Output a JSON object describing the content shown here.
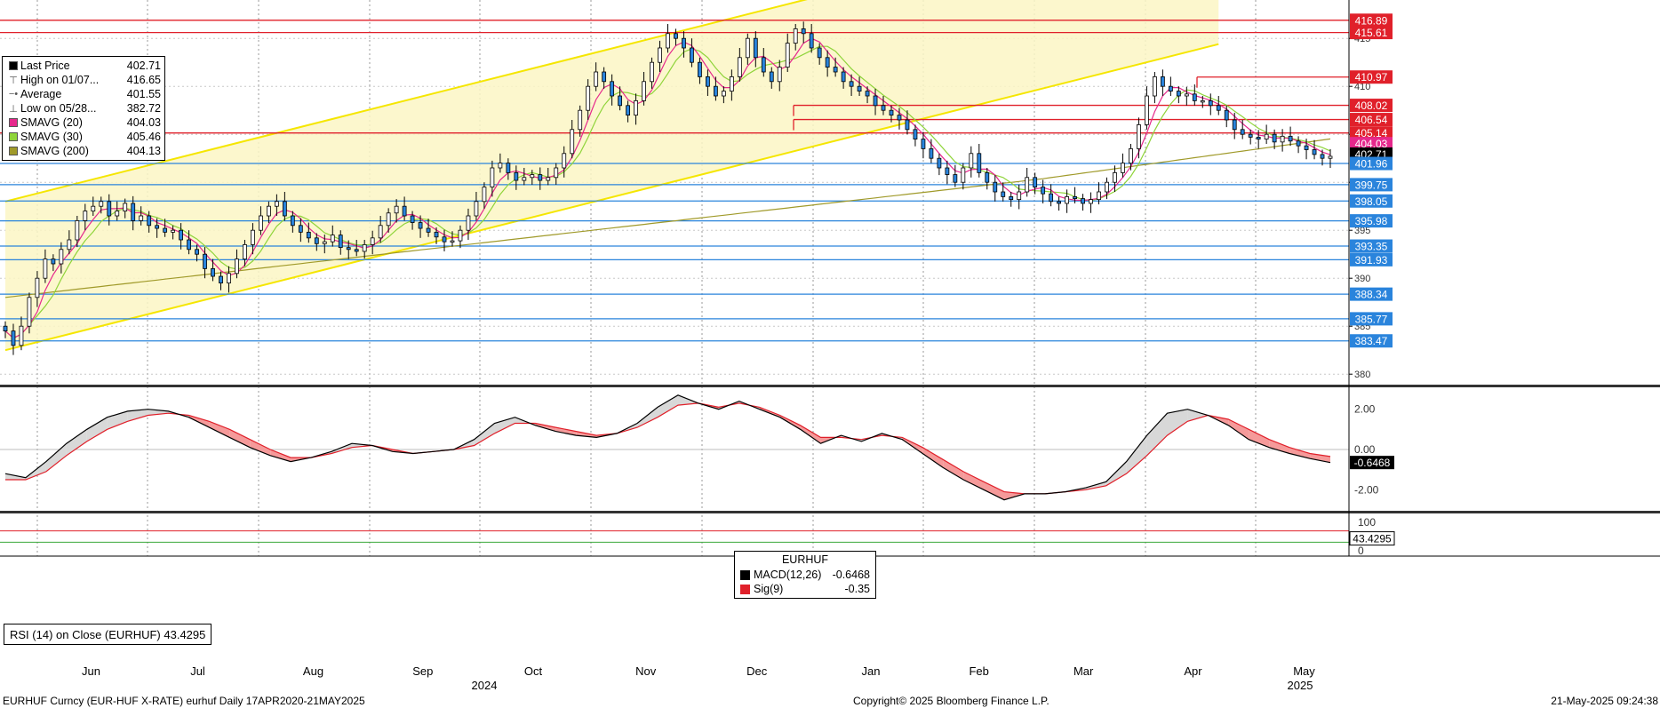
{
  "chart_data": {
    "type": "candlestick",
    "instrument": "EURHUF",
    "x_months": [
      "Jun",
      "Jul",
      "Aug",
      "Sep",
      "Oct",
      "Nov",
      "Dec",
      "Jan",
      "Feb",
      "Mar",
      "Apr",
      "May"
    ],
    "x_years": [
      "2024",
      "2025"
    ],
    "price_axis": {
      "ylim": [
        379,
        419
      ],
      "ticks": [
        "380",
        "385",
        "390",
        "395",
        "400",
        "405",
        "410",
        "415"
      ]
    },
    "price_series_close": [
      384.5,
      383,
      385,
      388,
      390,
      392,
      391.5,
      393,
      394,
      396,
      397,
      397.5,
      398,
      396.5,
      397,
      397.8,
      396,
      396.5,
      395.5,
      395.2,
      394.8,
      395,
      394,
      393,
      392.5,
      391,
      390.2,
      389.5,
      390.5,
      392,
      393.5,
      395,
      396.5,
      397.5,
      398,
      396.5,
      395.5,
      394.8,
      394.2,
      393.6,
      393.8,
      394.5,
      393.2,
      393,
      392.8,
      393.5,
      394.2,
      395.5,
      396.8,
      397.5,
      396.5,
      395.8,
      395.2,
      394.8,
      394.3,
      393.8,
      393.9,
      395,
      396.5,
      398,
      399.5,
      401.5,
      402,
      401,
      400.2,
      400.5,
      400.8,
      400.2,
      400.5,
      401.5,
      403,
      405.5,
      407.5,
      410,
      411.5,
      410.5,
      409,
      408,
      407,
      408.5,
      410.5,
      412.5,
      414,
      415.5,
      415,
      414,
      412.5,
      411,
      410,
      409,
      409.5,
      411,
      413,
      415,
      413,
      411.5,
      410.5,
      412,
      414.5,
      416,
      415.5,
      414,
      413,
      412,
      411.5,
      410.5,
      410,
      409.5,
      409,
      408,
      407.5,
      407,
      406.5,
      405.5,
      404.5,
      403.5,
      402.5,
      401.5,
      400.8,
      400,
      401.5,
      403,
      401,
      400,
      399,
      398.5,
      398.2,
      399,
      400.5,
      399.5,
      398.8,
      398,
      397.8,
      398.5,
      398.3,
      397.8,
      398.2,
      399,
      400,
      401,
      402,
      403.5,
      406,
      409,
      411,
      410,
      409.5,
      409,
      409.2,
      408.5,
      408.5,
      408,
      407.5,
      406.5,
      405.5,
      405,
      404.7,
      404.5,
      405,
      404.2,
      404.8,
      404.3,
      403.8,
      403.4,
      402.9,
      402.5,
      402.71
    ],
    "last_price": 402.71,
    "high_label": "High on 01/07...",
    "high_value": 416.65,
    "low_label": "Low on 05/28...",
    "low_value": 382.72,
    "average": 401.55,
    "sma20": 404.03,
    "sma30": 405.46,
    "sma200": 404.13,
    "horizontal_levels_red": [
      416.89,
      415.61,
      410.97,
      408.02,
      406.54,
      405.14
    ],
    "horizontal_levels_blue": [
      401.96,
      399.75,
      398.05,
      395.98,
      393.35,
      391.93,
      388.34,
      385.77,
      383.47
    ],
    "price_badges": [
      {
        "label": "416.89",
        "value": 416.89,
        "color": "#e0202a"
      },
      {
        "label": "415.61",
        "value": 415.61,
        "color": "#e0202a"
      },
      {
        "label": "410.97",
        "value": 410.97,
        "color": "#e0202a"
      },
      {
        "label": "408.02",
        "value": 408.02,
        "color": "#e0202a"
      },
      {
        "label": "406.54",
        "value": 406.54,
        "color": "#e0202a"
      },
      {
        "label": "405.14",
        "value": 405.14,
        "color": "#e0202a"
      },
      {
        "label": "404.03",
        "value": 404.03,
        "color": "#e6288c"
      },
      {
        "label": "402.71",
        "value": 402.71,
        "color": "#000000"
      },
      {
        "label": "401.96",
        "value": 401.96,
        "color": "#2a84dc"
      },
      {
        "label": "399.75",
        "value": 399.75,
        "color": "#2a84dc"
      },
      {
        "label": "398.05",
        "value": 398.05,
        "color": "#2a84dc"
      },
      {
        "label": "395.98",
        "value": 395.98,
        "color": "#2a84dc"
      },
      {
        "label": "393.35",
        "value": 393.35,
        "color": "#2a84dc"
      },
      {
        "label": "391.93",
        "value": 391.93,
        "color": "#2a84dc"
      },
      {
        "label": "388.34",
        "value": 388.34,
        "color": "#2a84dc"
      },
      {
        "label": "385.77",
        "value": 385.77,
        "color": "#2a84dc"
      },
      {
        "label": "383.47",
        "value": 383.47,
        "color": "#2a84dc"
      }
    ],
    "trend_channel": {
      "color": "#f5e600",
      "lower_start": [
        0,
        382.5
      ],
      "lower_end": [
        152,
        414.4
      ],
      "upper_start": [
        0,
        398
      ],
      "upper_end": [
        152,
        429.9
      ]
    },
    "macd": {
      "ylim": [
        -3.0,
        3.0
      ],
      "ticks": [
        "2.00",
        "0.00",
        "-2.00"
      ],
      "macd_values": [
        -1.2,
        -1.4,
        -0.6,
        0.3,
        1.0,
        1.6,
        1.9,
        2.0,
        1.9,
        1.6,
        1.1,
        0.6,
        0.1,
        -0.3,
        -0.6,
        -0.4,
        -0.1,
        0.3,
        0.2,
        -0.1,
        -0.2,
        -0.1,
        0.0,
        0.5,
        1.3,
        1.6,
        1.2,
        0.9,
        0.7,
        0.6,
        0.8,
        1.3,
        2.1,
        2.7,
        2.3,
        2.0,
        2.4,
        2.0,
        1.6,
        1.0,
        0.3,
        0.7,
        0.4,
        0.8,
        0.5,
        -0.2,
        -0.9,
        -1.5,
        -2.0,
        -2.5,
        -2.2,
        -2.2,
        -2.1,
        -1.9,
        -1.6,
        -0.6,
        0.7,
        1.8,
        2.0,
        1.7,
        1.2,
        0.5,
        0.1,
        -0.2,
        -0.45,
        -0.6468
      ],
      "signal_values": [
        -1.5,
        -1.5,
        -1.1,
        -0.3,
        0.4,
        1.0,
        1.4,
        1.7,
        1.8,
        1.7,
        1.4,
        1.0,
        0.5,
        0.0,
        -0.4,
        -0.4,
        -0.2,
        0.1,
        0.2,
        0.0,
        -0.2,
        -0.1,
        0.0,
        0.2,
        0.8,
        1.3,
        1.3,
        1.1,
        0.9,
        0.7,
        0.8,
        1.1,
        1.6,
        2.2,
        2.3,
        2.1,
        2.3,
        2.1,
        1.7,
        1.2,
        0.6,
        0.6,
        0.5,
        0.7,
        0.6,
        0.1,
        -0.5,
        -1.1,
        -1.6,
        -2.1,
        -2.2,
        -2.2,
        -2.1,
        -2.0,
        -1.8,
        -1.2,
        -0.3,
        0.7,
        1.4,
        1.7,
        1.5,
        1.0,
        0.5,
        0.1,
        -0.2,
        -0.35
      ],
      "legend_title": "EURHUF",
      "series": [
        {
          "name": "MACD(12,26)",
          "value": "-0.6468",
          "color": "#000000"
        },
        {
          "name": "Sig(9)",
          "value": "-0.35",
          "color": "#e0202a"
        }
      ],
      "last_badge": "-0.6468"
    },
    "rsi": {
      "ylim": [
        0,
        100
      ],
      "ticks": [
        "100",
        "0"
      ],
      "levels": [
        70,
        30
      ],
      "label": "RSI (14)  on Close (EURHUF) 43.4295",
      "last_badge": "43.4295"
    }
  },
  "legend_price": [
    {
      "symbol": "square",
      "label": "Last Price",
      "value": "402.71",
      "color": "#000000"
    },
    {
      "symbol": "high",
      "label": "High on 01/07...",
      "value": "416.65",
      "color": "#555555"
    },
    {
      "symbol": "avg",
      "label": "Average",
      "value": "401.55",
      "color": "#555555"
    },
    {
      "symbol": "low",
      "label": "Low on 05/28...",
      "value": "382.72",
      "color": "#555555"
    },
    {
      "symbol": "swatch",
      "label": "SMAVG (20)",
      "value": "404.03",
      "color": "#e6288c"
    },
    {
      "symbol": "swatch",
      "label": "SMAVG (30)",
      "value": "405.46",
      "color": "#8fd43a"
    },
    {
      "symbol": "swatch",
      "label": "SMAVG (200)",
      "value": "404.13",
      "color": "#a09a2a"
    }
  ],
  "footer": {
    "left": "EURHUF Curncy (EUR-HUF X-RATE) eurhuf  Daily 17APR2020-21MAY2025",
    "center": "Copyright© 2025 Bloomberg Finance L.P.",
    "right": "21-May-2025 09:24:38"
  }
}
